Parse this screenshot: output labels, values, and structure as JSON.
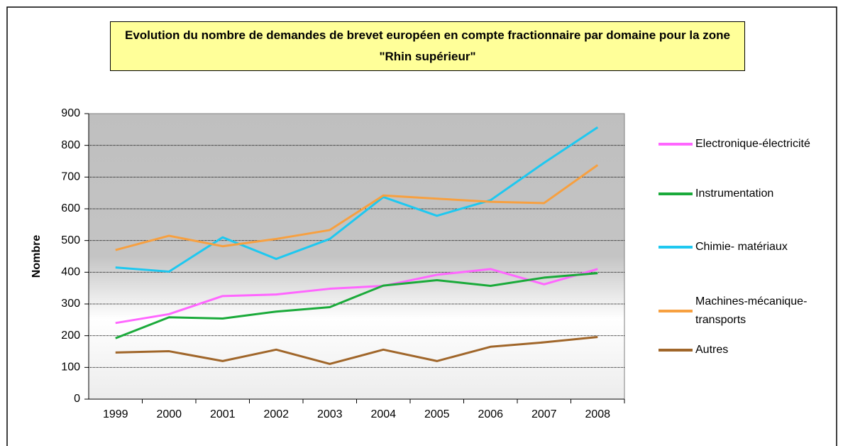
{
  "chart_data": {
    "type": "line",
    "title": "Evolution du nombre de demandes de brevet européen en compte fractionnaire par domaine pour la zone \"Rhin supérieur\"",
    "y_label": "Nombre",
    "categories": [
      "1999",
      "2000",
      "2001",
      "2002",
      "2003",
      "2004",
      "2005",
      "2006",
      "2007",
      "2008"
    ],
    "series": [
      {
        "name": "Electronique-électricité",
        "color": "#ff66ff",
        "values": [
          240,
          268,
          325,
          330,
          348,
          357,
          392,
          410,
          362,
          410
        ]
      },
      {
        "name": "Instrumentation",
        "color": "#1aaa3a",
        "values": [
          192,
          258,
          254,
          276,
          290,
          358,
          375,
          357,
          383,
          397
        ]
      },
      {
        "name": "Chimie- matériaux",
        "color": "#1ec8f0",
        "values": [
          415,
          402,
          510,
          442,
          505,
          637,
          578,
          627,
          745,
          857
        ]
      },
      {
        "name": "Machines-mécanique-transports",
        "color": "#f7a040",
        "values": [
          470,
          515,
          482,
          505,
          533,
          642,
          632,
          622,
          618,
          738
        ]
      },
      {
        "name": "Autres",
        "color": "#a0662a",
        "values": [
          147,
          151,
          120,
          156,
          111,
          156,
          120,
          165,
          179,
          196
        ]
      }
    ],
    "ylim": [
      0,
      900
    ],
    "yticks": [
      0,
      100,
      200,
      300,
      400,
      500,
      600,
      700,
      800,
      900
    ],
    "grid": true,
    "legend": "right"
  }
}
